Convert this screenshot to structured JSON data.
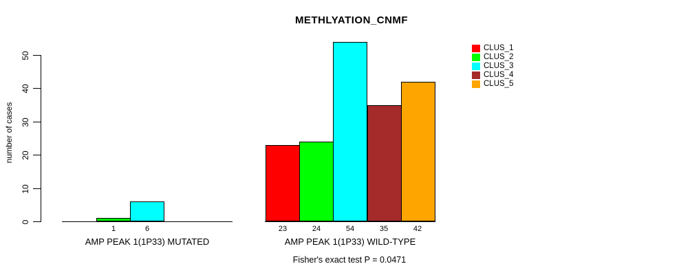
{
  "chart_data": {
    "type": "bar",
    "title": "METHLYATION_CNMF",
    "ylabel": "number of cases",
    "ylim": [
      0,
      50
    ],
    "yticks": [
      0,
      10,
      20,
      30,
      40,
      50
    ],
    "grid": false,
    "legend_position": "right",
    "categories": [
      "AMP PEAK 1(1P33) MUTATED",
      "AMP PEAK 1(1P33) WILD-TYPE"
    ],
    "series": [
      {
        "name": "CLUS_1",
        "color": "#FF0000",
        "values": [
          0,
          23
        ]
      },
      {
        "name": "CLUS_2",
        "color": "#00FF00",
        "values": [
          1,
          24
        ]
      },
      {
        "name": "CLUS_3",
        "color": "#00FFFF",
        "values": [
          6,
          54
        ]
      },
      {
        "name": "CLUS_4",
        "color": "#A52A2A",
        "values": [
          0,
          35
        ]
      },
      {
        "name": "CLUS_5",
        "color": "#FFA500",
        "values": [
          0,
          42
        ]
      }
    ],
    "value_labels": true,
    "value_labels_note": "labels shown only for bars with value > 0",
    "annotation": "Fisher's exact test P = 0.0471"
  }
}
